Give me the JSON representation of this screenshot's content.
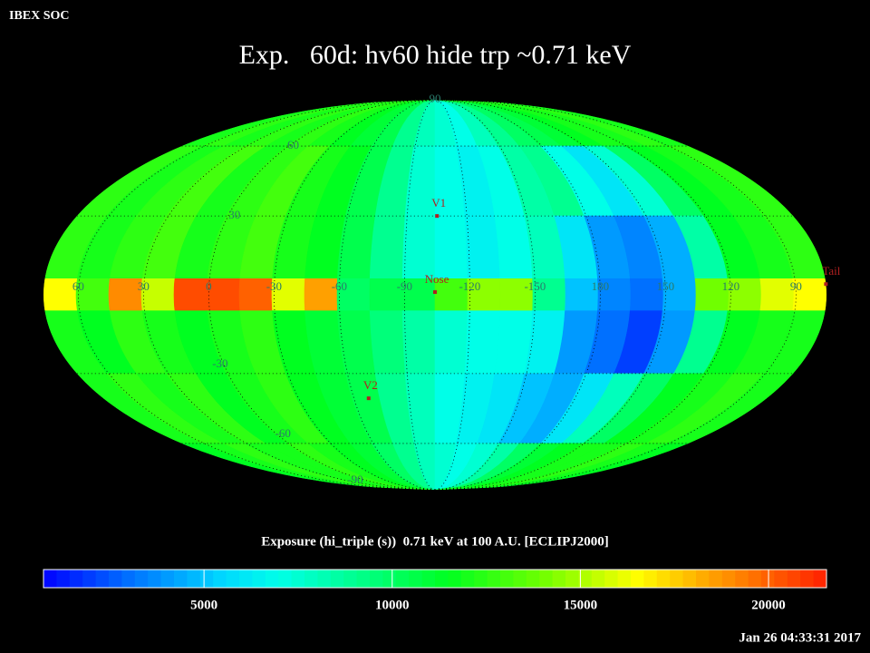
{
  "chart_data": {
    "type": "heatmap",
    "projection": "mollweide",
    "corner_label": "IBEX SOC",
    "title": "Exp.   60d: hv60 hide trp ~0.71 keV",
    "subtitle": "Exposure (hi_triple (s))  0.71 keV at 100 A.U. [ECLIPJ2000]",
    "timestamp": "Jan 26 04:33:31 2017",
    "xlim": [
      76,
      -284
    ],
    "ylim": [
      -90,
      90
    ],
    "xticks": [
      60,
      30,
      0,
      -30,
      -60,
      -90,
      -120,
      -150,
      {
        "value": -180,
        "label": "180"
      },
      {
        "value": -210,
        "label": "150"
      },
      {
        "value": -240,
        "label": "120"
      },
      {
        "value": -270,
        "label": "90"
      }
    ],
    "yticks": [
      90,
      60,
      30,
      -30,
      -60,
      -90
    ],
    "grid": true,
    "lon_edges": [
      76,
      61,
      46,
      31,
      16,
      1,
      -14,
      -29,
      -44,
      -59,
      -74,
      -89,
      -104,
      -119,
      -134,
      -149,
      -164,
      -179,
      -194,
      -209,
      -224,
      -239,
      -254,
      -269,
      -284
    ],
    "lat_edges": [
      90,
      60,
      30,
      6,
      -6,
      -30,
      -60,
      -90
    ],
    "values": [
      [
        12000,
        12500,
        12000,
        12500,
        12000,
        12500,
        12000,
        11500,
        11000,
        10500,
        9000,
        8000,
        7500,
        7000,
        8000,
        9000,
        10000,
        10500,
        11000,
        11500,
        12000,
        12000,
        12500,
        12000
      ],
      [
        12500,
        12000,
        12500,
        13000,
        12000,
        12500,
        13000,
        12000,
        11500,
        10500,
        9000,
        7500,
        7000,
        6500,
        7000,
        8500,
        9000,
        7000,
        6000,
        7500,
        10000,
        11500,
        12000,
        12500
      ],
      [
        12500,
        12000,
        12500,
        13000,
        12000,
        12500,
        13000,
        12000,
        11500,
        10500,
        9000,
        7500,
        7000,
        6500,
        7000,
        8000,
        6000,
        4000,
        3500,
        4500,
        8500,
        11500,
        12000,
        12500
      ],
      [
        16500,
        13000,
        19000,
        15500,
        20500,
        20500,
        20000,
        16000,
        18500,
        10000,
        10500,
        10500,
        13000,
        14500,
        14500,
        9000,
        5000,
        3500,
        3000,
        4500,
        14000,
        14500,
        16000,
        16500
      ],
      [
        12000,
        11500,
        12500,
        12000,
        11500,
        12000,
        12500,
        11500,
        11000,
        10500,
        9500,
        8500,
        7500,
        7000,
        7000,
        6500,
        4000,
        3000,
        2000,
        4000,
        9000,
        11500,
        12000,
        12000
      ],
      [
        12000,
        12500,
        12000,
        12500,
        11500,
        12000,
        12500,
        11500,
        11000,
        10500,
        9000,
        8000,
        7000,
        6500,
        6000,
        5000,
        4500,
        6000,
        8000,
        10000,
        11500,
        12000,
        12500,
        12000
      ],
      [
        11500,
        12000,
        12500,
        12000,
        12000,
        12500,
        12000,
        11500,
        11000,
        10000,
        9000,
        8000,
        7500,
        7000,
        7500,
        8500,
        10000,
        11000,
        11500,
        12000,
        12000,
        12500,
        12000,
        11500
      ]
    ],
    "markers": [
      {
        "label": "V1",
        "lon": -105,
        "lat": 30
      },
      {
        "label": "Nose",
        "lon": -104,
        "lat": 1
      },
      {
        "label": "V2",
        "lon": -68,
        "lat": -40
      },
      {
        "label": "Tail",
        "lon": -284,
        "lat": 4
      }
    ],
    "marker_color": "#b02020",
    "label_color": "#2a7a6a",
    "colorbar": {
      "clim": [
        735,
        21540
      ],
      "ticks": [
        5000,
        10000,
        15000,
        20000
      ],
      "colorscale": [
        [
          735,
          "#0000ff"
        ],
        [
          3000,
          "#0070ff"
        ],
        [
          5500,
          "#00d8ff"
        ],
        [
          7000,
          "#00ffe8"
        ],
        [
          9000,
          "#00ff90"
        ],
        [
          11500,
          "#00ff20"
        ],
        [
          14000,
          "#70ff00"
        ],
        [
          16500,
          "#ffff00"
        ],
        [
          18500,
          "#ffa000"
        ],
        [
          21540,
          "#ff2000"
        ]
      ]
    }
  }
}
